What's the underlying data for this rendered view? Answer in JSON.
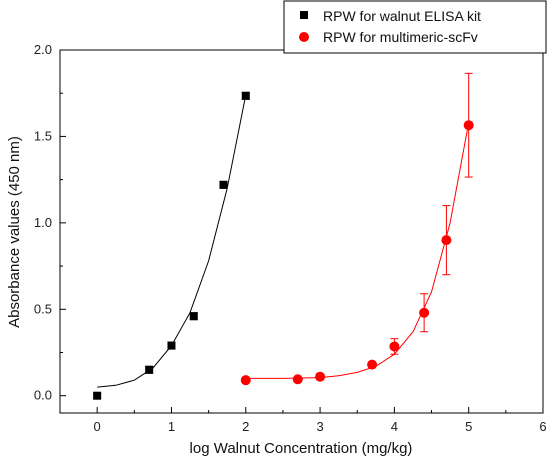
{
  "chart_data": {
    "type": "scatter",
    "title": "",
    "xlabel": "log Walnut Concentration (mg/kg)",
    "ylabel": "Absorbance values (450 nm)",
    "xlim": [
      -0.5,
      6
    ],
    "ylim": [
      -0.1,
      2.0
    ],
    "x_ticks": [
      "0",
      "1",
      "2",
      "3",
      "4",
      "5",
      "6"
    ],
    "y_ticks": [
      "0.0",
      "0.5",
      "1.0",
      "1.5",
      "2.0"
    ],
    "grid": false,
    "legend_position": "top-right",
    "series": [
      {
        "name": "RPW for walnut ELISA kit",
        "marker": "square",
        "color": "#000000",
        "points": [
          {
            "x": 0.0,
            "y": 0.0,
            "err": 0.01
          },
          {
            "x": 0.7,
            "y": 0.15,
            "err": 0.02
          },
          {
            "x": 1.0,
            "y": 0.29,
            "err": 0.02
          },
          {
            "x": 1.3,
            "y": 0.46,
            "err": 0.02
          },
          {
            "x": 1.7,
            "y": 1.22,
            "err": 0.02
          },
          {
            "x": 2.0,
            "y": 1.735,
            "err": 0.02
          }
        ],
        "fit": {
          "x": [
            0.0,
            0.25,
            0.5,
            0.75,
            1.0,
            1.25,
            1.5,
            1.75,
            2.0
          ],
          "y": [
            0.05,
            0.06,
            0.09,
            0.16,
            0.29,
            0.48,
            0.78,
            1.2,
            1.74
          ]
        }
      },
      {
        "name": "RPW for multimeric-scFv",
        "marker": "circle",
        "color": "#ff0000",
        "points": [
          {
            "x": 2.0,
            "y": 0.09,
            "err": 0.01
          },
          {
            "x": 2.7,
            "y": 0.095,
            "err": 0.01
          },
          {
            "x": 3.0,
            "y": 0.11,
            "err": 0.015
          },
          {
            "x": 3.7,
            "y": 0.18,
            "err": 0.015
          },
          {
            "x": 4.0,
            "y": 0.285,
            "err": 0.045
          },
          {
            "x": 4.4,
            "y": 0.48,
            "err": 0.11
          },
          {
            "x": 4.7,
            "y": 0.9,
            "err": 0.2
          },
          {
            "x": 5.0,
            "y": 1.565,
            "err": 0.3
          }
        ],
        "fit": {
          "x": [
            2.0,
            2.5,
            3.0,
            3.25,
            3.5,
            3.75,
            4.0,
            4.25,
            4.5,
            4.75,
            5.0
          ],
          "y": [
            0.1,
            0.1,
            0.105,
            0.115,
            0.135,
            0.17,
            0.24,
            0.37,
            0.6,
            1.0,
            1.58
          ]
        }
      }
    ]
  }
}
